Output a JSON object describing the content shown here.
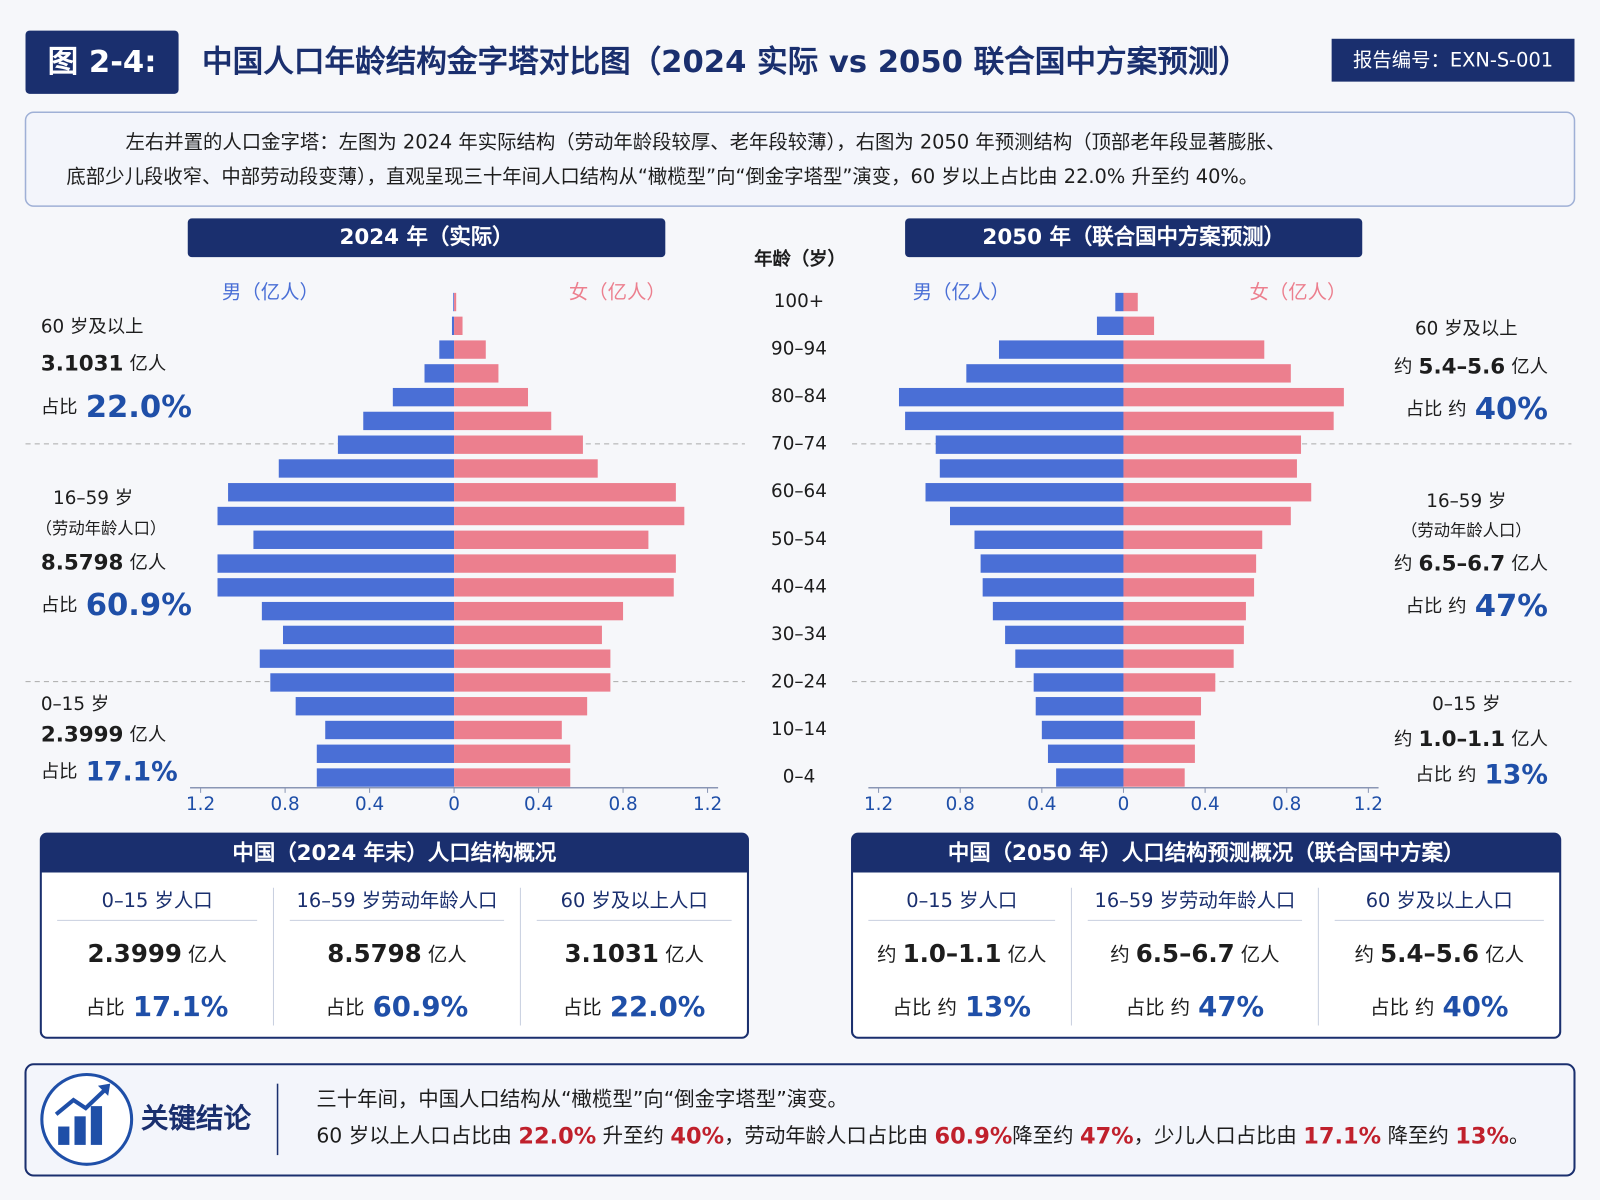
{
  "header": {
    "figure_no": "图 2-4:",
    "title": "中国人口年龄结构金字塔对比图（2024 实际 vs 2050 联合国中方案预测）",
    "report_no": "报告编号：EXN-S-001"
  },
  "description": [
    "左右并置的人口金字塔：左图为 2024 年实际结构（劳动年龄段较厚、老年段较薄），右图为 2050 年预测结构（顶部老年段显著膨胀、",
    "底部少儿段收窄、中部劳动段变薄），直观呈现三十年间人口结构从“橄榄型”向“倒金字塔型”演变，60 岁以上占比由 22.0% 升至约 40%。"
  ],
  "age_axis_title": "年龄（岁）",
  "age_groups": [
    "0–4",
    null,
    "10–14",
    null,
    "20–24",
    null,
    "30–34",
    null,
    "40–44",
    null,
    "50–54",
    null,
    "60–64",
    null,
    "70–74",
    null,
    "80–84",
    null,
    "90–94",
    null,
    "100+"
  ],
  "chart_data": [
    {
      "type": "pyramid",
      "title": "2024 年（实际）",
      "series": [
        {
          "name": "男（亿人）",
          "color": "#4a6fd6",
          "values": [
            0.65,
            0.65,
            0.61,
            0.75,
            0.87,
            0.92,
            0.81,
            0.91,
            1.12,
            1.12,
            0.95,
            1.12,
            1.07,
            0.83,
            0.55,
            0.43,
            0.29,
            0.14,
            0.07,
            0.01,
            0.004
          ]
        },
        {
          "name": "女（亿人）",
          "color": "#ec7f8e",
          "values": [
            0.55,
            0.55,
            0.51,
            0.63,
            0.74,
            0.74,
            0.7,
            0.8,
            1.04,
            1.05,
            0.92,
            1.09,
            1.05,
            0.68,
            0.61,
            0.46,
            0.35,
            0.21,
            0.15,
            0.04,
            0.01
          ]
        }
      ],
      "xlim": [
        -1.25,
        1.25
      ],
      "xticks": [
        {
          "value": -1.2,
          "label": "1.2"
        },
        {
          "value": -0.8,
          "label": "0.8"
        },
        {
          "value": -0.4,
          "label": "0.4"
        },
        0,
        0.4,
        0.8,
        1.2
      ],
      "annotations": [
        {
          "label": "60 岁及以上",
          "value": "3.1031",
          "unit": "亿人",
          "share_prefix": "占比",
          "share": "22.0%"
        },
        {
          "label": "16–59 岁",
          "sublabel": "（劳动年龄人口）",
          "value": "8.5798",
          "unit": "亿人",
          "share_prefix": "占比",
          "share": "60.9%"
        },
        {
          "label": "0–15 岁",
          "value": "2.3999",
          "unit": "亿人",
          "share_prefix": "占比",
          "share": "17.1%"
        }
      ]
    },
    {
      "type": "pyramid",
      "title": "2050 年（联合国中方案预测）",
      "series": [
        {
          "name": "男（亿人）",
          "color": "#4a6fd6",
          "values": [
            0.33,
            0.37,
            0.4,
            0.43,
            0.44,
            0.53,
            0.58,
            0.64,
            0.69,
            0.7,
            0.73,
            0.85,
            0.97,
            0.9,
            0.92,
            1.07,
            1.1,
            0.77,
            0.61,
            0.13,
            0.04
          ]
        },
        {
          "name": "女（亿人）",
          "color": "#ec7f8e",
          "values": [
            0.3,
            0.35,
            0.35,
            0.38,
            0.45,
            0.54,
            0.59,
            0.6,
            0.64,
            0.65,
            0.68,
            0.82,
            0.92,
            0.85,
            0.87,
            1.03,
            1.08,
            0.82,
            0.69,
            0.15,
            0.07
          ]
        }
      ],
      "xlim": [
        -1.25,
        1.25
      ],
      "xticks": [
        {
          "value": -1.2,
          "label": "1.2"
        },
        {
          "value": -0.8,
          "label": "0.8"
        },
        {
          "value": -0.4,
          "label": "0.4"
        },
        0,
        0.4,
        0.8,
        1.2
      ],
      "annotations": [
        {
          "label": "60 岁及以上",
          "prefix": "约",
          "value": "5.4–5.6",
          "unit": "亿人",
          "share_prefix": "占比 约",
          "share": "40%"
        },
        {
          "label": "16–59 岁",
          "sublabel": "（劳动年龄人口）",
          "prefix": "约",
          "value": "6.5–6.7",
          "unit": "亿人",
          "share_prefix": "占比 约",
          "share": "47%"
        },
        {
          "label": "0–15 岁",
          "prefix": "约",
          "value": "1.0–1.1",
          "unit": "亿人",
          "share_prefix": "占比 约",
          "share": "13%"
        }
      ]
    }
  ],
  "summaries": [
    {
      "title": "中国（2024 年末）人口结构概况",
      "columns": [
        {
          "label": "0–15 岁人口",
          "value": "2.3999",
          "unit": "亿人",
          "share_prefix": "占比",
          "share": "17.1%"
        },
        {
          "label": "16–59 岁劳动年龄人口",
          "value": "8.5798",
          "unit": "亿人",
          "share_prefix": "占比",
          "share": "60.9%"
        },
        {
          "label": "60 岁及以上人口",
          "value": "3.1031",
          "unit": "亿人",
          "share_prefix": "占比",
          "share": "22.0%"
        }
      ]
    },
    {
      "title": "中国（2050 年）人口结构预测概况（联合国中方案）",
      "columns": [
        {
          "label": "0–15 岁人口",
          "prefix": "约",
          "value": "1.0–1.1",
          "unit": "亿人",
          "share_prefix": "占比 约",
          "share": "13%"
        },
        {
          "label": "16–59 岁劳动年龄人口",
          "prefix": "约",
          "value": "6.5–6.7",
          "unit": "亿人",
          "share_prefix": "占比 约",
          "share": "47%"
        },
        {
          "label": "60 岁及以上人口",
          "prefix": "约",
          "value": "5.4–5.6",
          "unit": "亿人",
          "share_prefix": "占比 约",
          "share": "40%"
        }
      ]
    }
  ],
  "conclusion": {
    "title": "关键结论",
    "line1": "三十年间，中国人口结构从“橄榄型”向“倒金字塔型”演变。",
    "line2": [
      {
        "text": "60 岁以上人口占比由 "
      },
      {
        "text": "22.0%",
        "highlight": true
      },
      {
        "text": " 升至约 "
      },
      {
        "text": "40%",
        "highlight": true
      },
      {
        "text": "，劳动年龄人口占比由 "
      },
      {
        "text": "60.9%",
        "highlight": true
      },
      {
        "text": "降至约 "
      },
      {
        "text": "47%",
        "highlight": true
      },
      {
        "text": "，少儿人口占比由 "
      },
      {
        "text": "17.1%",
        "highlight": true
      },
      {
        "text": " 降至约 "
      },
      {
        "text": "13%",
        "highlight": true
      },
      {
        "text": "。"
      }
    ]
  }
}
